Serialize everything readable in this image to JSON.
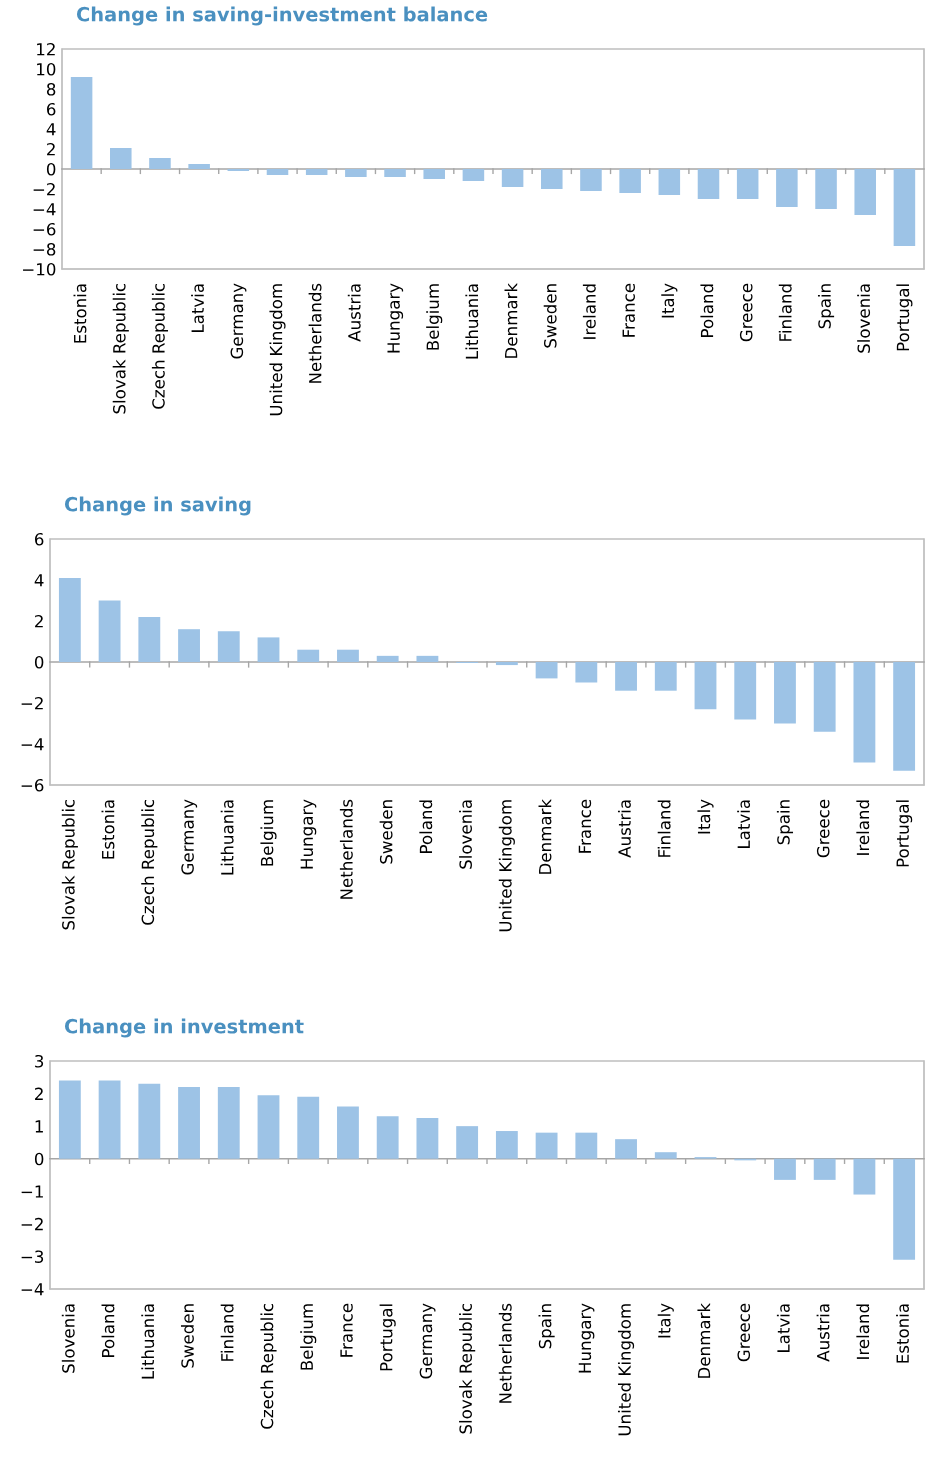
{
  "chart_data": [
    {
      "type": "bar",
      "title": "Change in saving-investment balance",
      "color": "#9dc3e6",
      "categories": [
        "Estonia",
        "Slovak Republic",
        "Czech Republic",
        "Latvia",
        "Germany",
        "United Kingdom",
        "Netherlands",
        "Austria",
        "Hungary",
        "Belgium",
        "Lithuania",
        "Denmark",
        "Sweden",
        "Ireland",
        "France",
        "Italy",
        "Poland",
        "Greece",
        "Finland",
        "Spain",
        "Slovenia",
        "Portugal"
      ],
      "values": [
        9.2,
        2.1,
        1.1,
        0.5,
        -0.2,
        -0.6,
        -0.6,
        -0.8,
        -0.8,
        -1.0,
        -1.2,
        -1.8,
        -2.0,
        -2.2,
        -2.4,
        -2.6,
        -3.0,
        -3.0,
        -3.8,
        -4.0,
        -4.6,
        -7.7
      ],
      "ylim": [
        -10,
        12
      ],
      "yticks": [
        -10,
        -8,
        -6,
        -4,
        -2,
        0,
        2,
        4,
        6,
        8,
        10,
        12
      ]
    },
    {
      "type": "bar",
      "title": "Change in saving",
      "color": "#9dc3e6",
      "categories": [
        "Slovak Republic",
        "Estonia",
        "Czech Republic",
        "Germany",
        "Lithuania",
        "Belgium",
        "Hungary",
        "Netherlands",
        "Sweden",
        "Poland",
        "Slovenia",
        "United Kingdom",
        "Denmark",
        "France",
        "Austria",
        "Finland",
        "Italy",
        "Latvia",
        "Spain",
        "Greece",
        "Ireland",
        "Portugal"
      ],
      "values": [
        4.1,
        3.0,
        2.2,
        1.6,
        1.5,
        1.2,
        0.6,
        0.6,
        0.3,
        0.3,
        -0.05,
        -0.15,
        -0.8,
        -1.0,
        -1.4,
        -1.4,
        -2.3,
        -2.8,
        -3.0,
        -3.4,
        -4.9,
        -5.3
      ],
      "ylim": [
        -6,
        6
      ],
      "yticks": [
        -6,
        -4,
        -2,
        0,
        2,
        4,
        6
      ]
    },
    {
      "type": "bar",
      "title": "Change in investment",
      "color": "#9dc3e6",
      "categories": [
        "Slovenia",
        "Poland",
        "Lithuania",
        "Sweden",
        "Finland",
        "Czech Republic",
        "Belgium",
        "France",
        "Portugal",
        "Germany",
        "Slovak Republic",
        "Netherlands",
        "Spain",
        "Hungary",
        "United Kingdom",
        "Italy",
        "Denmark",
        "Greece",
        "Latvia",
        "Austria",
        "Ireland",
        "Estonia"
      ],
      "values": [
        2.4,
        2.4,
        2.3,
        2.2,
        2.2,
        1.95,
        1.9,
        1.6,
        1.3,
        1.25,
        1.0,
        0.85,
        0.8,
        0.8,
        0.6,
        0.2,
        0.05,
        -0.05,
        -0.65,
        -0.65,
        -1.1,
        -3.1
      ],
      "ylim": [
        -4,
        3
      ],
      "yticks": [
        -4,
        -3,
        -2,
        -1,
        0,
        1,
        2,
        3
      ]
    }
  ]
}
